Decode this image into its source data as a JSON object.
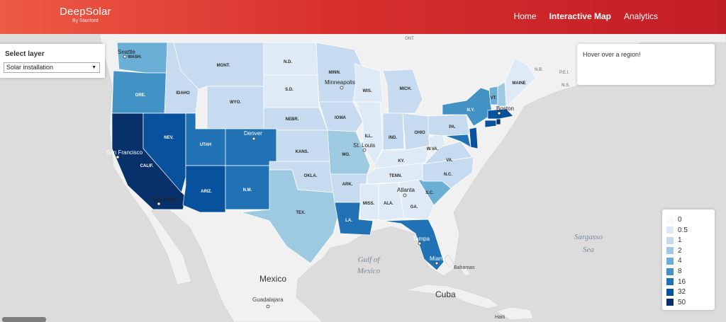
{
  "header": {
    "brand_name": "DeepSolar",
    "brand_sub": "By Stanford",
    "nav": [
      {
        "label": "Home",
        "active": false
      },
      {
        "label": "Interactive Map",
        "active": true
      },
      {
        "label": "Analytics",
        "active": false
      }
    ]
  },
  "layer_panel": {
    "title": "Select layer",
    "selected": "Solar installation"
  },
  "info_panel": {
    "text": "Hover over a region!"
  },
  "legend": {
    "items": [
      {
        "label": "0",
        "color": "#f7fbff"
      },
      {
        "label": "0.5",
        "color": "#deebf7"
      },
      {
        "label": "1",
        "color": "#c6dbef"
      },
      {
        "label": "2",
        "color": "#9ecae1"
      },
      {
        "label": "4",
        "color": "#6baed6"
      },
      {
        "label": "8",
        "color": "#4292c6"
      },
      {
        "label": "16",
        "color": "#2171b5"
      },
      {
        "label": "32",
        "color": "#08519c"
      },
      {
        "label": "50",
        "color": "#08306b"
      }
    ]
  },
  "map_labels": {
    "countries": {
      "mexico": "Mexico",
      "cuba": "Cuba",
      "haiti": "Haiti"
    },
    "water": {
      "gulf": "Gulf of Mexico",
      "sargasso": "Sargasso Sea"
    },
    "provinces": {
      "ont": "ONT.",
      "nb": "N.B.",
      "pei": "P.E.I.",
      "ns": "N.S."
    },
    "states": {
      "wash": "WASH.",
      "ore": "ORE.",
      "calif": "CALIF.",
      "nev": "NEV.",
      "idaho": "IDAHO",
      "mont": "MONT.",
      "wyo": "WYO.",
      "utah": "UTAH",
      "ariz": "ARIZ.",
      "nm": "N.M.",
      "nd": "N.D.",
      "sd": "S.D.",
      "nebr": "NEBR.",
      "kans": "KANS.",
      "okla": "OKLA.",
      "tex": "TEX.",
      "minn": "MINN.",
      "iowa": "IOWA",
      "mo": "MO.",
      "ark": "ARK.",
      "la": "LA.",
      "wis": "WIS.",
      "ill": "ILL.",
      "mich": "MICH.",
      "ind": "IND.",
      "ohio": "OHIO",
      "ky": "KY.",
      "tenn": "TENN.",
      "miss": "MISS.",
      "ala": "ALA.",
      "ga": "GA.",
      "sc": "S.C.",
      "nc": "N.C.",
      "va": "VA.",
      "wva": "W.VA.",
      "pa": "PA.",
      "ny": "N.Y.",
      "vt": "VT.",
      "maine": "MAINE"
    },
    "cities": {
      "seattle": "Seattle",
      "san_francisco": "San Francisco",
      "san_diego": "San Diego",
      "denver": "Denver",
      "minneapolis": "Minneapolis",
      "st_louis": "St. Louis",
      "atlanta": "Atlanta",
      "tampa": "Tampa",
      "miami": "Miami",
      "boston": "Boston",
      "guadalajara": "Guadalajara",
      "bahamas": "Bahamas"
    }
  }
}
